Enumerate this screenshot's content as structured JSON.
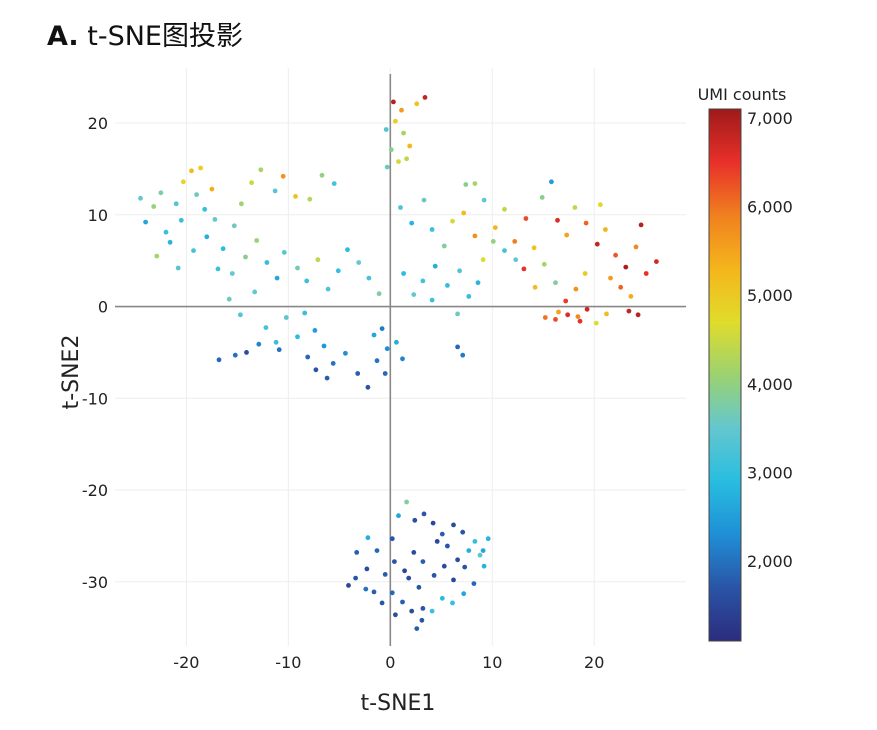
{
  "figure": {
    "panel_label": "A.",
    "title": "t-SNE图投影"
  },
  "colors": {
    "colormap": [
      "#2c2c7e",
      "#2a54a6",
      "#1f8fd6",
      "#29bde0",
      "#63c7cf",
      "#9cd270",
      "#e0dc2a",
      "#f5b51c",
      "#f0801f",
      "#e8302a",
      "#9e1a1a"
    ],
    "axis_line": "#888888",
    "grid": "#eeeeee"
  },
  "chart_data": {
    "type": "scatter",
    "title": "",
    "xlabel": "t-SNE1",
    "ylabel": "t-SNE2",
    "xlim": [
      -27,
      29
    ],
    "ylim": [
      -37,
      26
    ],
    "xticks": [
      -20,
      -10,
      0,
      10,
      20
    ],
    "xtick_labels": [
      "-20",
      "-10",
      "0",
      "10",
      "20"
    ],
    "yticks": [
      20,
      10,
      0,
      -10,
      -20,
      -30
    ],
    "ytick_labels": [
      "20",
      "10",
      "0",
      "-10",
      "-20",
      "-30"
    ],
    "grid": true,
    "colorbar": {
      "title": "UMI counts",
      "range": [
        1100,
        7100
      ],
      "ticks": [
        7000,
        6000,
        5000,
        4000,
        3000,
        2000
      ],
      "tick_labels": [
        "7,000",
        "6,000",
        "5,000",
        "4,000",
        "3,000",
        "2,000"
      ]
    },
    "points": [
      [
        -24.5,
        11.8,
        3500
      ],
      [
        -23.2,
        10.9,
        4000
      ],
      [
        -22.5,
        12.4,
        3800
      ],
      [
        -24,
        9.2,
        2600
      ],
      [
        -22,
        8.1,
        3000
      ],
      [
        -21,
        11.2,
        3300
      ],
      [
        -20.3,
        13.6,
        4800
      ],
      [
        -19.5,
        14.8,
        5200
      ],
      [
        -18.6,
        15.1,
        4900
      ],
      [
        -19,
        12.2,
        3600
      ],
      [
        -18.2,
        10.6,
        3000
      ],
      [
        -17.5,
        12.8,
        5400
      ],
      [
        -20.5,
        9.4,
        3100
      ],
      [
        -21.6,
        7,
        2800
      ],
      [
        -22.9,
        5.5,
        4200
      ],
      [
        -20.8,
        4.2,
        3400
      ],
      [
        -19.3,
        6.1,
        3200
      ],
      [
        -18,
        7.6,
        2700
      ],
      [
        -17.2,
        9.5,
        3500
      ],
      [
        -16.4,
        6.3,
        2900
      ],
      [
        -15.3,
        8.8,
        3600
      ],
      [
        -14.6,
        11.2,
        4100
      ],
      [
        -13.6,
        13.5,
        4500
      ],
      [
        -12.7,
        14.9,
        4200
      ],
      [
        -11.3,
        12.6,
        3400
      ],
      [
        -10.5,
        14.2,
        5700
      ],
      [
        -9.3,
        12,
        5100
      ],
      [
        -7.9,
        11.7,
        4300
      ],
      [
        -6.7,
        14.3,
        4000
      ],
      [
        -5.5,
        13.4,
        3200
      ],
      [
        -16.9,
        4.1,
        3100
      ],
      [
        -15.5,
        3.6,
        3500
      ],
      [
        -14.2,
        5.4,
        3900
      ],
      [
        -13.1,
        7.2,
        4100
      ],
      [
        -12.1,
        4.8,
        3000
      ],
      [
        -11.1,
        3.1,
        2600
      ],
      [
        -10.4,
        5.9,
        3400
      ],
      [
        -9.1,
        4.2,
        3700
      ],
      [
        -8.2,
        2.8,
        3100
      ],
      [
        -7.1,
        5.1,
        4400
      ],
      [
        -6.1,
        1.9,
        3300
      ],
      [
        -5.1,
        3.9,
        3000
      ],
      [
        -4.2,
        6.2,
        2900
      ],
      [
        -3.1,
        4.8,
        3500
      ],
      [
        -2.1,
        3.1,
        3200
      ],
      [
        -1.1,
        1.4,
        3800
      ],
      [
        -15.8,
        0.8,
        3600
      ],
      [
        -14.7,
        -0.9,
        3300
      ],
      [
        -13.3,
        1.6,
        3500
      ],
      [
        -12.2,
        -2.3,
        3200
      ],
      [
        -11.2,
        -3.9,
        3000
      ],
      [
        -10.2,
        -1.2,
        3400
      ],
      [
        -9.1,
        -3.3,
        2900
      ],
      [
        -8.4,
        -0.7,
        3100
      ],
      [
        -7.4,
        -2.6,
        2500
      ],
      [
        -6.5,
        -4.3,
        2400
      ],
      [
        -5.6,
        -6.2,
        2000
      ],
      [
        -4.4,
        -5.1,
        2300
      ],
      [
        -3.2,
        -7.3,
        1800
      ],
      [
        -2.2,
        -8.8,
        1700
      ],
      [
        -16.8,
        -5.8,
        1900
      ],
      [
        -15.2,
        -5.3,
        2000
      ],
      [
        -14.1,
        -5,
        1600
      ],
      [
        -12.9,
        -4.1,
        2200
      ],
      [
        -10.9,
        -4.7,
        2000
      ],
      [
        -8.1,
        -5.5,
        1900
      ],
      [
        -7.3,
        -6.9,
        1700
      ],
      [
        -6.2,
        -7.8,
        1800
      ],
      [
        -1.6,
        -3.1,
        2600
      ],
      [
        -0.8,
        -2.4,
        2100
      ],
      [
        -0.3,
        -4.6,
        2300
      ],
      [
        0.6,
        -3.9,
        2700
      ],
      [
        -1.3,
        -5.9,
        2000
      ],
      [
        -0.5,
        -7.3,
        1900
      ],
      [
        1.2,
        -5.7,
        2200
      ],
      [
        0.3,
        22.3,
        6900
      ],
      [
        1.1,
        21.4,
        5600
      ],
      [
        0.5,
        20.2,
        4900
      ],
      [
        1.3,
        18.9,
        4200
      ],
      [
        0.1,
        17.1,
        3900
      ],
      [
        1.6,
        16.1,
        4400
      ],
      [
        -0.3,
        15.2,
        3600
      ],
      [
        2.6,
        22.1,
        5100
      ],
      [
        3.4,
        22.8,
        6800
      ],
      [
        1.9,
        17.5,
        5300
      ],
      [
        -0.4,
        19.3,
        3300
      ],
      [
        0.8,
        15.8,
        4600
      ],
      [
        1,
        10.8,
        3300
      ],
      [
        2.1,
        9.1,
        2800
      ],
      [
        3.3,
        11.6,
        3600
      ],
      [
        4.1,
        8.4,
        3100
      ],
      [
        5.3,
        6.6,
        3800
      ],
      [
        6.1,
        9.3,
        4600
      ],
      [
        7.2,
        10.2,
        5200
      ],
      [
        8.3,
        7.7,
        5700
      ],
      [
        9.1,
        5.1,
        4700
      ],
      [
        6.8,
        3.9,
        3300
      ],
      [
        5.6,
        2.3,
        3000
      ],
      [
        4.4,
        4.4,
        2700
      ],
      [
        3.2,
        2.8,
        3200
      ],
      [
        2.3,
        1.3,
        3500
      ],
      [
        1.3,
        3.6,
        2900
      ],
      [
        4.1,
        0.7,
        3100
      ],
      [
        6.6,
        -0.8,
        3600
      ],
      [
        7.4,
        13.3,
        3900
      ],
      [
        8.3,
        13.4,
        4200
      ],
      [
        9.2,
        11.6,
        3500
      ],
      [
        8.6,
        2.6,
        2800
      ],
      [
        7.7,
        1.1,
        3000
      ],
      [
        6.6,
        -4.4,
        1900
      ],
      [
        7.1,
        -5.3,
        2100
      ],
      [
        10.3,
        8.6,
        5300
      ],
      [
        11.2,
        10.6,
        4400
      ],
      [
        12.2,
        7.1,
        5900
      ],
      [
        13.3,
        9.6,
        6300
      ],
      [
        14.1,
        6.4,
        5100
      ],
      [
        14.9,
        11.9,
        3900
      ],
      [
        15.8,
        13.6,
        2500
      ],
      [
        16.4,
        9.4,
        6600
      ],
      [
        17.3,
        7.8,
        5500
      ],
      [
        18.1,
        10.8,
        4400
      ],
      [
        19.2,
        9.1,
        6100
      ],
      [
        20.3,
        6.8,
        6800
      ],
      [
        21.1,
        8.4,
        5300
      ],
      [
        22.1,
        5.6,
        6200
      ],
      [
        23.1,
        4.3,
        7000
      ],
      [
        24.1,
        6.5,
        5800
      ],
      [
        25.1,
        3.6,
        6500
      ],
      [
        26.1,
        4.9,
        6700
      ],
      [
        20.6,
        11.1,
        4800
      ],
      [
        21.6,
        3.1,
        5600
      ],
      [
        22.6,
        2.1,
        6100
      ],
      [
        23.6,
        1.1,
        5400
      ],
      [
        24.6,
        8.9,
        6900
      ],
      [
        19.1,
        3.6,
        5000
      ],
      [
        18.2,
        1.9,
        5700
      ],
      [
        17.2,
        0.6,
        6400
      ],
      [
        16.2,
        2.6,
        3800
      ],
      [
        15.1,
        4.6,
        4200
      ],
      [
        14.2,
        2.1,
        5200
      ],
      [
        13.1,
        4.1,
        6500
      ],
      [
        12.3,
        5.1,
        3500
      ],
      [
        11.2,
        6.1,
        3200
      ],
      [
        10.1,
        7.1,
        4000
      ],
      [
        16.5,
        -0.6,
        5500
      ],
      [
        17.4,
        -0.9,
        6600
      ],
      [
        18.4,
        -1.1,
        5800
      ],
      [
        19.3,
        -0.3,
        6700
      ],
      [
        20.2,
        -1.8,
        4700
      ],
      [
        21.2,
        -0.8,
        5200
      ],
      [
        23.4,
        -0.5,
        6800
      ],
      [
        24.3,
        -0.9,
        6900
      ],
      [
        15.2,
        -1.2,
        6000
      ],
      [
        16.2,
        -1.4,
        6300
      ],
      [
        18.6,
        -1.6,
        6500
      ],
      [
        0.8,
        -22.8,
        2600
      ],
      [
        1.6,
        -21.3,
        3800
      ],
      [
        2.4,
        -23.3,
        1600
      ],
      [
        3.3,
        -22.6,
        1700
      ],
      [
        4.2,
        -23.6,
        1500
      ],
      [
        5.1,
        -24.8,
        1800
      ],
      [
        6.2,
        -23.8,
        1600
      ],
      [
        7.1,
        -24.6,
        1700
      ],
      [
        8.3,
        -25.6,
        3000
      ],
      [
        9.1,
        -26.6,
        2600
      ],
      [
        9.6,
        -25.3,
        2800
      ],
      [
        0.2,
        -25.3,
        1700
      ],
      [
        -1.3,
        -26.6,
        1900
      ],
      [
        -2.2,
        -25.2,
        2700
      ],
      [
        -3.3,
        -26.8,
        1800
      ],
      [
        -2.3,
        -28.6,
        1600
      ],
      [
        -3.4,
        -29.6,
        1700
      ],
      [
        -2.4,
        -30.8,
        2000
      ],
      [
        -4.1,
        -30.4,
        1500
      ],
      [
        -0.5,
        -29.2,
        1800
      ],
      [
        0.4,
        -27.8,
        1700
      ],
      [
        1.4,
        -28.8,
        1500
      ],
      [
        2.3,
        -26.8,
        1600
      ],
      [
        3.2,
        -27.8,
        1800
      ],
      [
        4.3,
        -29.3,
        1700
      ],
      [
        5.3,
        -28.3,
        1600
      ],
      [
        6.2,
        -29.8,
        1500
      ],
      [
        7.3,
        -28.4,
        1700
      ],
      [
        8.2,
        -30.2,
        1900
      ],
      [
        9.2,
        -28.3,
        2800
      ],
      [
        7.2,
        -31.3,
        2600
      ],
      [
        6.1,
        -32.3,
        3000
      ],
      [
        5.1,
        -31.8,
        2900
      ],
      [
        4.1,
        -33.2,
        3100
      ],
      [
        3.1,
        -34.2,
        1700
      ],
      [
        2.1,
        -33.2,
        1600
      ],
      [
        1.2,
        -32.2,
        1800
      ],
      [
        0.2,
        -31.2,
        1900
      ],
      [
        -0.8,
        -32.3,
        1700
      ],
      [
        0.5,
        -33.6,
        1600
      ],
      [
        2.6,
        -35.1,
        1800
      ],
      [
        3.2,
        -32.9,
        1700
      ],
      [
        8.8,
        -27.1,
        3400
      ],
      [
        7.7,
        -26.6,
        2700
      ],
      [
        5.6,
        -26.1,
        1700
      ],
      [
        4.6,
        -25.6,
        1500
      ],
      [
        6.6,
        -27.6,
        1600
      ],
      [
        2.8,
        -30.6,
        1700
      ],
      [
        1.8,
        -29.6,
        1600
      ],
      [
        -1.6,
        -31.1,
        1800
      ]
    ]
  }
}
